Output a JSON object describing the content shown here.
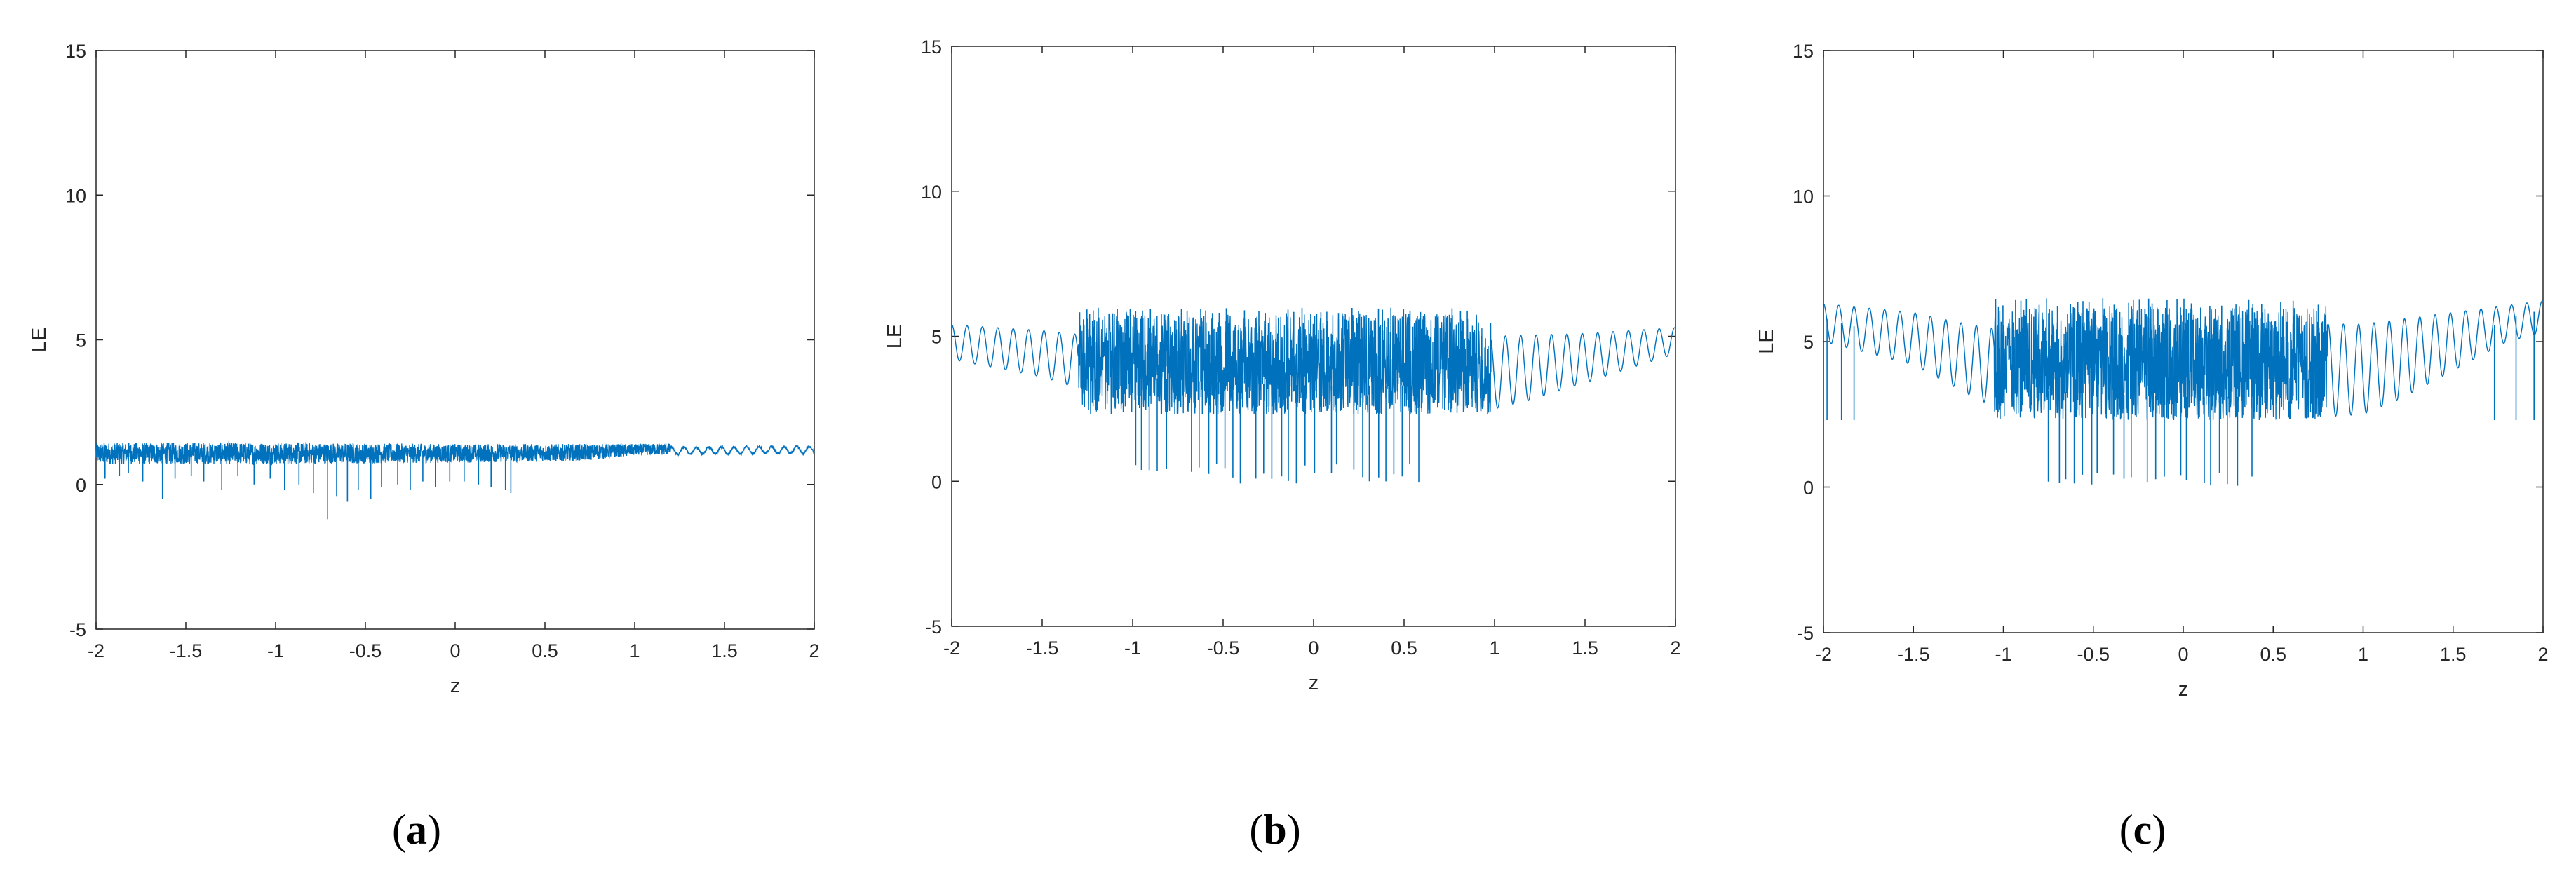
{
  "colors": {
    "line": "#0072BD",
    "axis": "#262626",
    "background": "#ffffff"
  },
  "chart_data": [
    {
      "type": "line",
      "panel_label": "a",
      "xlabel": "z",
      "ylabel": "LE",
      "xlim": [
        -2,
        2
      ],
      "ylim": [
        -5,
        15
      ],
      "x_ticks": [
        "-2",
        "-1.5",
        "-1",
        "-0.5",
        "0",
        "0.5",
        "1",
        "1.5",
        "2"
      ],
      "y_ticks": [
        "-5",
        "0",
        "5",
        "10",
        "15"
      ],
      "grid": false,
      "series": [
        {
          "baseline": [
            [
              -2.0,
              1.1
            ],
            [
              -1.0,
              1.1
            ],
            [
              0.0,
              1.1
            ],
            [
              1.0,
              1.15
            ],
            [
              2.0,
              1.2
            ]
          ],
          "band_low": [
            [
              -2.0,
              0.7
            ],
            [
              -1.0,
              0.7
            ],
            [
              0.0,
              0.75
            ],
            [
              0.7,
              0.8
            ],
            [
              1.0,
              1.0
            ],
            [
              2.0,
              1.1
            ]
          ],
          "band_high": [
            [
              -2.0,
              1.45
            ],
            [
              -1.0,
              1.45
            ],
            [
              0.0,
              1.4
            ],
            [
              1.0,
              1.4
            ],
            [
              1.5,
              1.45
            ],
            [
              2.0,
              1.3
            ]
          ],
          "spikes": [
            [
              -1.95,
              0.2
            ],
            [
              -1.87,
              0.3
            ],
            [
              -1.82,
              0.4
            ],
            [
              -1.74,
              0.1
            ],
            [
              -1.63,
              -0.5
            ],
            [
              -1.56,
              0.2
            ],
            [
              -1.47,
              0.3
            ],
            [
              -1.4,
              0.1
            ],
            [
              -1.3,
              -0.2
            ],
            [
              -1.21,
              0.3
            ],
            [
              -1.12,
              0.0
            ],
            [
              -1.03,
              0.2
            ],
            [
              -0.95,
              -0.2
            ],
            [
              -0.87,
              0.0
            ],
            [
              -0.79,
              -0.3
            ],
            [
              -0.71,
              -1.2
            ],
            [
              -0.66,
              -0.4
            ],
            [
              -0.6,
              -0.6
            ],
            [
              -0.54,
              -0.2
            ],
            [
              -0.47,
              -0.5
            ],
            [
              -0.41,
              -0.1
            ],
            [
              -0.32,
              0.0
            ],
            [
              -0.25,
              -0.2
            ],
            [
              -0.18,
              0.1
            ],
            [
              -0.11,
              -0.1
            ],
            [
              -0.03,
              0.1
            ],
            [
              0.05,
              0.1
            ],
            [
              0.13,
              0.0
            ],
            [
              0.2,
              -0.1
            ],
            [
              0.28,
              -0.2
            ],
            [
              0.31,
              -0.3
            ]
          ]
        }
      ]
    },
    {
      "type": "line",
      "panel_label": "b",
      "xlabel": "z",
      "ylabel": "LE",
      "xlim": [
        -2,
        2
      ],
      "ylim": [
        -5,
        15
      ],
      "x_ticks": [
        "-2",
        "-1.5",
        "-1",
        "-0.5",
        "0",
        "0.5",
        "1",
        "1.5",
        "2"
      ],
      "y_ticks": [
        "-5",
        "0",
        "5",
        "10",
        "15"
      ],
      "grid": false,
      "series": [
        {
          "envelope_low": [
            [
              -2.0,
              4.2
            ],
            [
              -1.5,
              3.6
            ],
            [
              -1.2,
              3.0
            ],
            [
              -1.0,
              2.8
            ],
            [
              -0.5,
              2.6
            ],
            [
              0.0,
              2.5
            ],
            [
              0.5,
              2.5
            ],
            [
              1.0,
              2.5
            ],
            [
              1.2,
              2.8
            ],
            [
              1.5,
              3.4
            ],
            [
              1.8,
              4.0
            ],
            [
              2.0,
              4.4
            ]
          ],
          "envelope_high": [
            [
              -2.0,
              5.4
            ],
            [
              -1.5,
              5.2
            ],
            [
              -1.2,
              5.0
            ],
            [
              -1.0,
              5.0
            ],
            [
              -0.5,
              5.0
            ],
            [
              0.0,
              5.0
            ],
            [
              0.5,
              5.0
            ],
            [
              1.0,
              5.0
            ],
            [
              1.5,
              5.1
            ],
            [
              2.0,
              5.3
            ]
          ],
          "oscillation_period": 0.085,
          "chaotic_range": [
            -1.3,
            0.98
          ],
          "chaotic_band": [
            2.3,
            5.8
          ],
          "spike_top": 5.8,
          "spike_top_max": 6.0,
          "spike_bottom": 0.2,
          "spike_bottom_min": -0.1,
          "downward_spike_range": [
            -1.0,
            0.6
          ]
        }
      ]
    },
    {
      "type": "line",
      "panel_label": "c",
      "xlabel": "z",
      "ylabel": "LE",
      "xlim": [
        -2,
        2
      ],
      "ylim": [
        -5,
        15
      ],
      "x_ticks": [
        "-2",
        "-1.5",
        "-1",
        "-0.5",
        "0",
        "0.5",
        "1",
        "1.5",
        "2"
      ],
      "y_ticks": [
        "-5",
        "0",
        "5",
        "10",
        "15"
      ],
      "grid": false,
      "series": [
        {
          "envelope_low": [
            [
              -2.0,
              5.0
            ],
            [
              -1.5,
              4.2
            ],
            [
              -1.2,
              3.2
            ],
            [
              -1.0,
              2.6
            ],
            [
              -0.5,
              2.4
            ],
            [
              0.0,
              2.3
            ],
            [
              0.5,
              2.3
            ],
            [
              1.0,
              2.5
            ],
            [
              1.2,
              3.0
            ],
            [
              1.5,
              4.0
            ],
            [
              1.8,
              5.0
            ],
            [
              2.0,
              5.3
            ]
          ],
          "envelope_high": [
            [
              -2.0,
              6.3
            ],
            [
              -1.5,
              6.0
            ],
            [
              -1.2,
              5.6
            ],
            [
              -1.0,
              5.4
            ],
            [
              -0.5,
              5.5
            ],
            [
              0.0,
              5.6
            ],
            [
              0.5,
              5.6
            ],
            [
              1.0,
              5.6
            ],
            [
              1.5,
              6.0
            ],
            [
              2.0,
              6.4
            ]
          ],
          "oscillation_period": 0.085,
          "chaotic_range": [
            -1.05,
            0.8
          ],
          "chaotic_band": [
            2.3,
            6.2
          ],
          "spike_top": 6.2,
          "spike_top_max": 6.5,
          "spike_bottom": 0.2,
          "spike_bottom_min": 0.0,
          "downward_spike_range": [
            -0.75,
            0.4
          ],
          "edge_spikes": [
            [
              -1.98,
              2.3
            ],
            [
              -1.9,
              2.3
            ],
            [
              -1.83,
              2.3
            ],
            [
              1.73,
              2.3
            ],
            [
              1.85,
              2.3
            ],
            [
              1.95,
              2.3
            ]
          ]
        }
      ]
    }
  ]
}
